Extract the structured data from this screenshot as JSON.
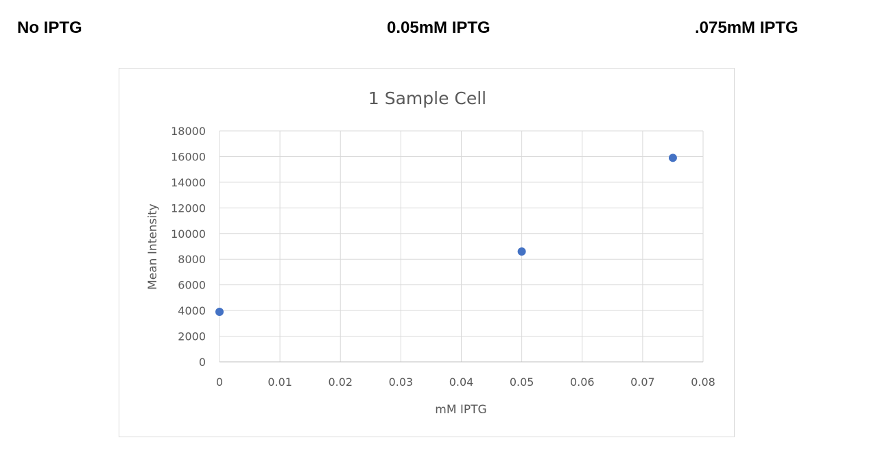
{
  "labels": {
    "left": "No IPTG",
    "middle": "0.05mM IPTG",
    "right": ".075mM IPTG"
  },
  "chart_data": {
    "type": "scatter",
    "title": "1 Sample Cell",
    "xlabel": "mM IPTG",
    "ylabel": "Mean Intensity",
    "xlim": [
      0,
      0.08
    ],
    "ylim": [
      0,
      18000
    ],
    "x_ticks": [
      "0",
      "0.01",
      "0.02",
      "0.03",
      "0.04",
      "0.05",
      "0.06",
      "0.07",
      "0.08"
    ],
    "y_ticks": [
      "0",
      "2000",
      "4000",
      "6000",
      "8000",
      "10000",
      "12000",
      "14000",
      "16000",
      "18000"
    ],
    "grid": true,
    "marker_color": "#4472c4",
    "series": [
      {
        "x": [
          0,
          0.05,
          0.075
        ],
        "y": [
          3900,
          8600,
          15900
        ]
      }
    ]
  }
}
